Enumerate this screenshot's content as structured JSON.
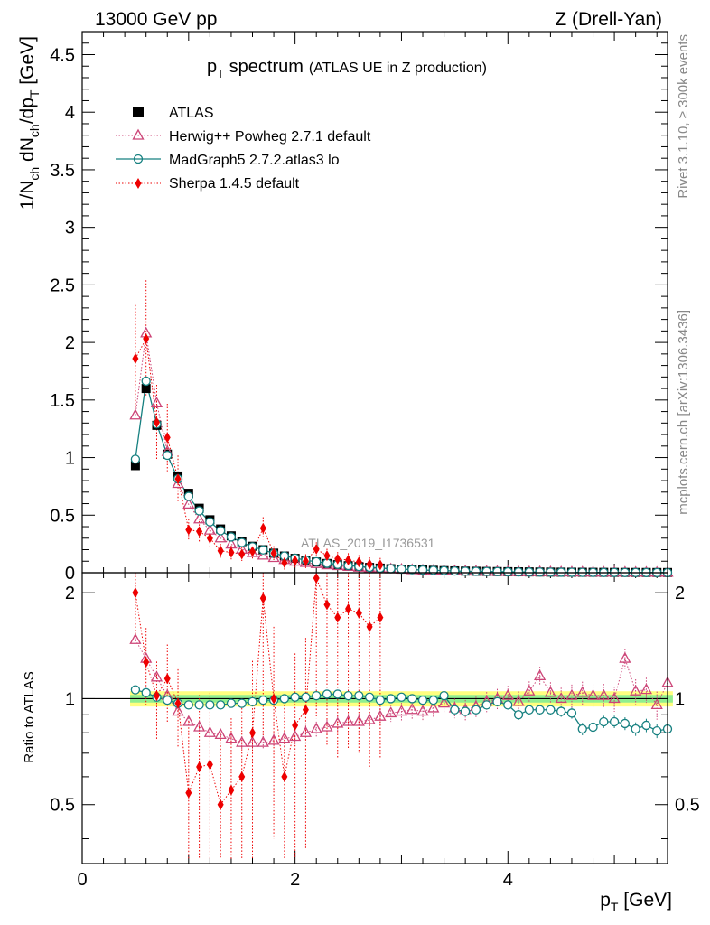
{
  "header": {
    "left": "13000 GeV pp",
    "right": "Z (Drell-Yan)"
  },
  "side_labels": {
    "rivet": "Rivet 3.1.10, ≥ 300k events",
    "mcplots": "mcplots.cern.ch [arXiv:1306.3436]"
  },
  "watermark": "ATLAS_2019_I1736531",
  "chart_data": {
    "type": "scatter",
    "title": {
      "main": "p",
      "main_sub": "T",
      "main_rest": " spectrum",
      "subtitle": "(ATLAS UE in Z production)"
    },
    "xlabel": {
      "main": "p",
      "sub": "T",
      "rest": " [GeV]"
    },
    "ylabel": {
      "p1": "1/N",
      "s1": "ch",
      "p2": " dN",
      "s2": "ch",
      "p3": "/dp",
      "s3": "T",
      "p4": " [GeV]"
    },
    "ratio_ylabel": "Ratio to ATLAS",
    "xlim": [
      0,
      5.5
    ],
    "ylim_main": [
      0,
      4.7
    ],
    "ylim_ratio": [
      0.34,
      2.28
    ],
    "x_ticks": [
      "0",
      "2",
      "4"
    ],
    "main_y_ticks": [
      "0",
      "0.5",
      "1",
      "1.5",
      "2",
      "2.5",
      "3",
      "3.5",
      "4",
      "4.5"
    ],
    "ratio_y_ticks": [
      "0.5",
      "1",
      "2"
    ],
    "legend": [
      {
        "name": "ATLAS",
        "color": "#000000",
        "marker": "square"
      },
      {
        "name": "Herwig++ Powheg 2.7.1 default",
        "color": "#cc4477",
        "marker": "triangle"
      },
      {
        "name": "MadGraph5 2.7.2.atlas3 lo",
        "color": "#168080",
        "marker": "circle"
      },
      {
        "name": "Sherpa 1.4.5 default",
        "color": "#ee0000",
        "marker": "diamond"
      }
    ],
    "atlas": {
      "x": [
        0.5,
        0.6,
        0.7,
        0.8,
        0.9,
        1.0,
        1.1,
        1.2,
        1.3,
        1.4,
        1.5,
        1.6,
        1.7,
        1.8,
        1.9,
        2.0,
        2.1,
        2.2,
        2.3,
        2.4,
        2.5,
        2.6,
        2.7,
        2.8,
        2.9,
        3.0,
        3.1,
        3.2,
        3.3,
        3.4,
        3.5,
        3.6,
        3.7,
        3.8,
        3.9,
        4.0,
        4.1,
        4.2,
        4.3,
        4.4,
        4.5,
        4.6,
        4.7,
        4.8,
        4.9,
        5.0,
        5.1,
        5.2,
        5.3,
        5.4,
        5.5
      ],
      "y": [
        0.93,
        1.6,
        1.28,
        1.03,
        0.84,
        0.69,
        0.56,
        0.46,
        0.38,
        0.32,
        0.27,
        0.23,
        0.2,
        0.17,
        0.145,
        0.125,
        0.108,
        0.093,
        0.08,
        0.07,
        0.061,
        0.053,
        0.046,
        0.04,
        0.035,
        0.031,
        0.027,
        0.024,
        0.021,
        0.018,
        0.016,
        0.014,
        0.0125,
        0.011,
        0.0098,
        0.0087,
        0.0077,
        0.0069,
        0.0061,
        0.0054,
        0.0048,
        0.0043,
        0.0038,
        0.0034,
        0.003,
        0.0027,
        0.0024,
        0.0021,
        0.0019,
        0.0017,
        0.0015
      ]
    },
    "ratio_x": [
      0.5,
      0.6,
      0.7,
      0.8,
      0.9,
      1.0,
      1.1,
      1.2,
      1.3,
      1.4,
      1.5,
      1.6,
      1.7,
      1.8,
      1.9,
      2.0,
      2.1,
      2.2,
      2.3,
      2.4,
      2.5,
      2.6,
      2.7,
      2.8,
      2.9,
      3.0,
      3.1,
      3.2,
      3.3,
      3.4,
      3.5,
      3.6,
      3.7,
      3.8,
      3.9,
      4.0,
      4.1,
      4.2,
      4.3,
      4.4,
      4.5,
      4.6,
      4.7,
      4.8,
      4.9,
      5.0,
      5.1,
      5.2,
      5.3,
      5.4,
      5.5
    ],
    "herwig_ratio": [
      1.47,
      1.3,
      1.15,
      1.02,
      0.92,
      0.86,
      0.83,
      0.8,
      0.79,
      0.77,
      0.75,
      0.75,
      0.75,
      0.76,
      0.77,
      0.78,
      0.8,
      0.82,
      0.83,
      0.85,
      0.86,
      0.86,
      0.87,
      0.89,
      0.91,
      0.92,
      0.93,
      0.92,
      0.94,
      0.97,
      0.94,
      0.93,
      0.95,
      0.98,
      1.0,
      1.02,
      0.98,
      1.05,
      1.16,
      1.04,
      1.0,
      1.02,
      1.04,
      1.02,
      1.02,
      1.0,
      1.3,
      1.05,
      1.06,
      0.96,
      1.11
    ],
    "mg_ratio": [
      1.06,
      1.04,
      1.01,
      0.99,
      0.97,
      0.96,
      0.96,
      0.96,
      0.96,
      0.97,
      0.97,
      0.98,
      0.99,
      0.99,
      1.0,
      1.01,
      1.01,
      1.02,
      1.03,
      1.03,
      1.02,
      1.02,
      1.01,
      0.99,
      1.0,
      1.01,
      1.0,
      0.99,
      0.99,
      1.02,
      0.93,
      0.92,
      0.93,
      0.96,
      0.98,
      0.96,
      0.9,
      0.93,
      0.93,
      0.93,
      0.92,
      0.91,
      0.82,
      0.83,
      0.86,
      0.86,
      0.85,
      0.82,
      0.84,
      0.81,
      0.82
    ],
    "sherpa_x": [
      0.5,
      0.6,
      0.7,
      0.8,
      0.9,
      1.0,
      1.1,
      1.2,
      1.3,
      1.4,
      1.5,
      1.6,
      1.7,
      1.8,
      1.9,
      2.0,
      2.1,
      2.2,
      2.3,
      2.4,
      2.5,
      2.6,
      2.7,
      2.8
    ],
    "sherpa_ratio": [
      2.0,
      1.27,
      1.02,
      1.14,
      0.97,
      0.54,
      0.64,
      0.65,
      0.5,
      0.55,
      0.6,
      0.8,
      1.93,
      1.0,
      0.6,
      0.84,
      0.93,
      2.2,
      1.85,
      1.7,
      1.8,
      1.75,
      1.6,
      1.7
    ],
    "sherpa_main_override": {
      "x": [
        2.8
      ],
      "y": [
        0.17
      ]
    },
    "band": {
      "inner_half_width": 0.025,
      "outer_half_width": 0.05
    }
  }
}
